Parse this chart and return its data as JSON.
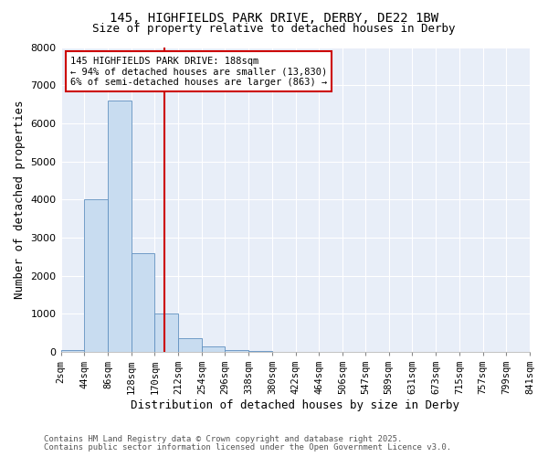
{
  "title1": "145, HIGHFIELDS PARK DRIVE, DERBY, DE22 1BW",
  "title2": "Size of property relative to detached houses in Derby",
  "xlabel": "Distribution of detached houses by size in Derby",
  "ylabel": "Number of detached properties",
  "bin_edges": [
    2,
    44,
    86,
    128,
    170,
    212,
    254,
    296,
    338,
    380,
    422,
    464,
    506,
    547,
    589,
    631,
    673,
    715,
    757,
    799,
    841
  ],
  "counts": [
    50,
    4000,
    6600,
    2600,
    1000,
    350,
    130,
    50,
    30,
    0,
    0,
    0,
    0,
    0,
    0,
    0,
    0,
    0,
    0,
    0
  ],
  "bar_color": "#c8dcf0",
  "bar_edge_color": "#6090c0",
  "plot_bg_color": "#e8eef8",
  "fig_bg_color": "#ffffff",
  "grid_color": "#ffffff",
  "vline_x_index": 4.43,
  "vline_color": "#cc0000",
  "annotation_text": "145 HIGHFIELDS PARK DRIVE: 188sqm\n← 94% of detached houses are smaller (13,830)\n6% of semi-detached houses are larger (863) →",
  "annotation_box_color": "#cc0000",
  "annotation_bg_color": "#ffffff",
  "ylim": [
    0,
    8000
  ],
  "tick_labels": [
    "2sqm",
    "44sqm",
    "86sqm",
    "128sqm",
    "170sqm",
    "212sqm",
    "254sqm",
    "296sqm",
    "338sqm",
    "380sqm",
    "422sqm",
    "464sqm",
    "506sqm",
    "547sqm",
    "589sqm",
    "631sqm",
    "673sqm",
    "715sqm",
    "757sqm",
    "799sqm",
    "841sqm"
  ],
  "footnote1": "Contains HM Land Registry data © Crown copyright and database right 2025.",
  "footnote2": "Contains public sector information licensed under the Open Government Licence v3.0.",
  "title1_fontsize": 10,
  "title2_fontsize": 9,
  "axis_label_fontsize": 9,
  "tick_fontsize": 7.5,
  "annotation_fontsize": 7.5,
  "footnote_fontsize": 6.5
}
